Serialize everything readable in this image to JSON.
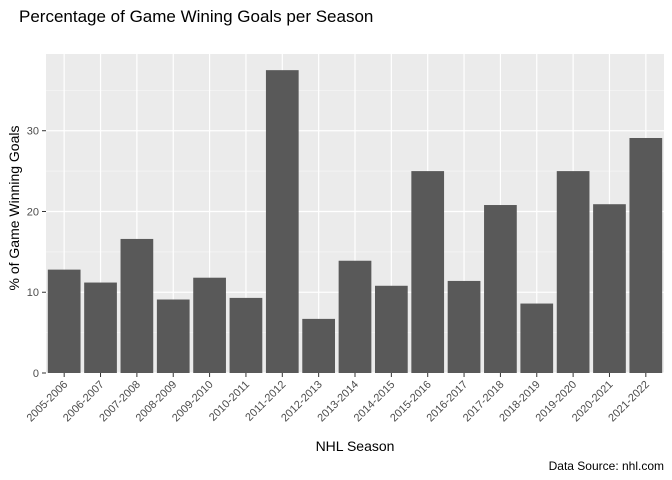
{
  "chart_data": {
    "type": "bar",
    "title": "Percentage of Game Wining Goals per Season",
    "xlabel": "NHL Season",
    "ylabel": "% of Game Winning Goals",
    "caption": "Data Source: nhl.com",
    "categories": [
      "2005-2006",
      "2006-2007",
      "2007-2008",
      "2008-2009",
      "2009-2010",
      "2010-2011",
      "2011-2012",
      "2012-2013",
      "2013-2014",
      "2014-2015",
      "2015-2016",
      "2016-2017",
      "2017-2018",
      "2018-2019",
      "2019-2020",
      "2020-2021",
      "2021-2022"
    ],
    "values": [
      12.8,
      11.2,
      16.6,
      9.1,
      11.8,
      9.3,
      37.5,
      6.7,
      13.9,
      10.8,
      25.0,
      11.4,
      20.8,
      8.6,
      25.0,
      20.9,
      29.1
    ],
    "ylim": [
      0,
      39.5
    ],
    "yticks": [
      0,
      10,
      20,
      30
    ],
    "grid": true,
    "legend": "none",
    "colors": {
      "bar": "#595959",
      "panel": "#ebebeb",
      "grid_major": "#ffffff",
      "grid_minor": "#f5f5f5"
    }
  }
}
